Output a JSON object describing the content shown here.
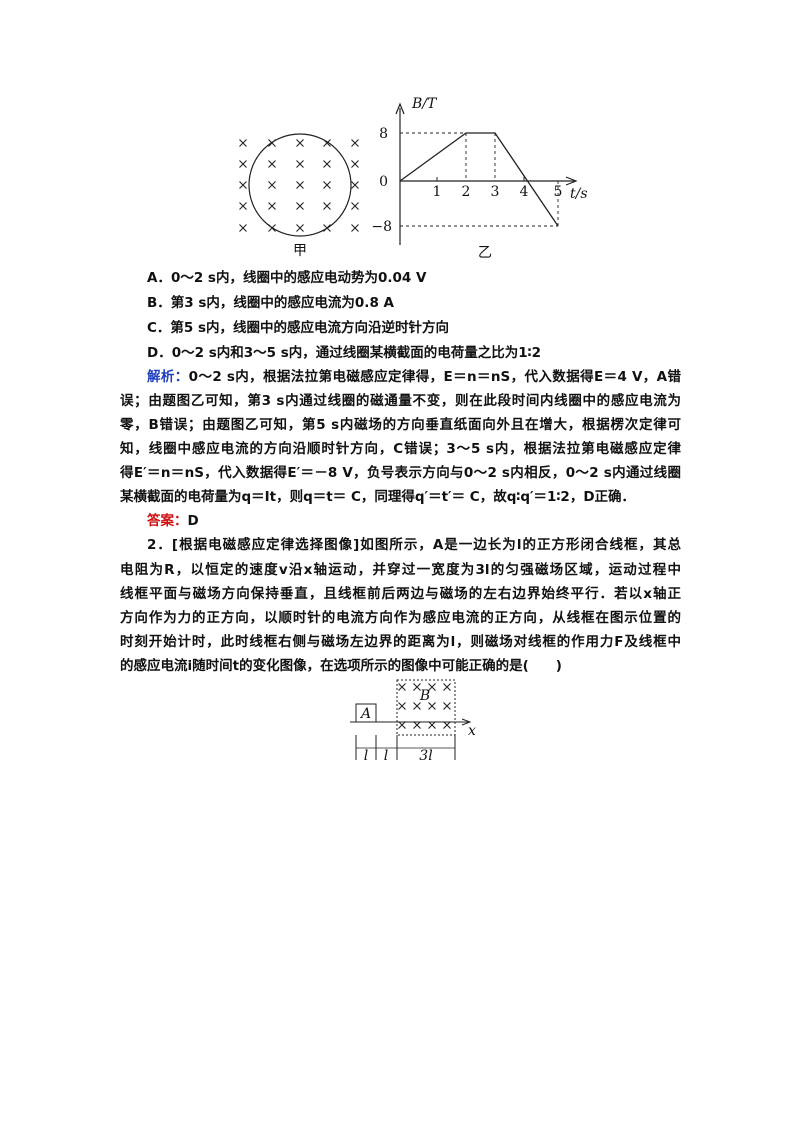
{
  "figure1": {
    "left_label": "甲",
    "right_label": "乙",
    "y_axis": "B/T",
    "x_axis": "t/s",
    "y_ticks": [
      "8",
      "0",
      "−8"
    ],
    "x_ticks": [
      "1",
      "2",
      "3",
      "4",
      "5"
    ]
  },
  "options": [
    "A．0～2 s内，线圈中的感应电动势为0.04 V",
    "B．第3 s内，线圈中的感应电流为0.8 A",
    "C．第5 s内，线圈中的感应电流方向沿逆时针方向",
    "D．0～2 s内和3～5 s内，通过线圈某横截面的电荷量之比为1∶2"
  ],
  "analysis": {
    "label": "解析：",
    "lines": [
      "0～2 s内，根据法拉第电磁感应定律得，E＝n＝nS，代入数据得E＝4 V，A错",
      "误；由题图乙可知，第3 s内通过线圈的磁通量不变，则在此段时间内线圈中的感应电流为",
      "零，B错误；由题图乙可知，第5 s内磁场的方向垂直纸面向外且在增大，根据楞次定律可",
      "知，线圈中感应电流的方向沿顺时针方向，C错误；3～5 s内，根据法拉第电磁感应定律",
      "得E′＝n＝nS，代入数据得E′＝－8 V，负号表示方向与0～2 s内相反，0～2 s内通过线圈",
      "某横截面的电荷量为q＝It，则q＝t＝ C，同理得q′＝t′＝ C，故q∶q′＝1∶2，D正确．"
    ]
  },
  "answer": {
    "label": "答案：",
    "text": "D"
  },
  "question2": {
    "lines": [
      "2．[根据电磁感应定律选择图像]如图所示，A是一边长为l的正方形闭合线框，其总",
      "电阻为R，以恒定的速度v沿x轴运动，并穿过一宽度为3l的匀强磁场区域，运动过程中",
      "线框平面与磁场方向保持垂直，且线框前后两边与磁场的左右边界始终平行．若以x轴正",
      "方向作为力的正方向，以顺时针的电流方向作为感应电流的正方向，从线框在图示位置的",
      "时刻开始计时，此时线框右侧与磁场左边界的距离为l，则磁场对线框的作用力F及线框中",
      "的感应电流i随时间t的变化图像，在选项所示的图像中可能正确的是(　　)"
    ]
  },
  "figure2": {
    "box_label": "A",
    "field_label": "B",
    "x_axis": "x",
    "dims": [
      "l",
      "l",
      "3l"
    ]
  }
}
